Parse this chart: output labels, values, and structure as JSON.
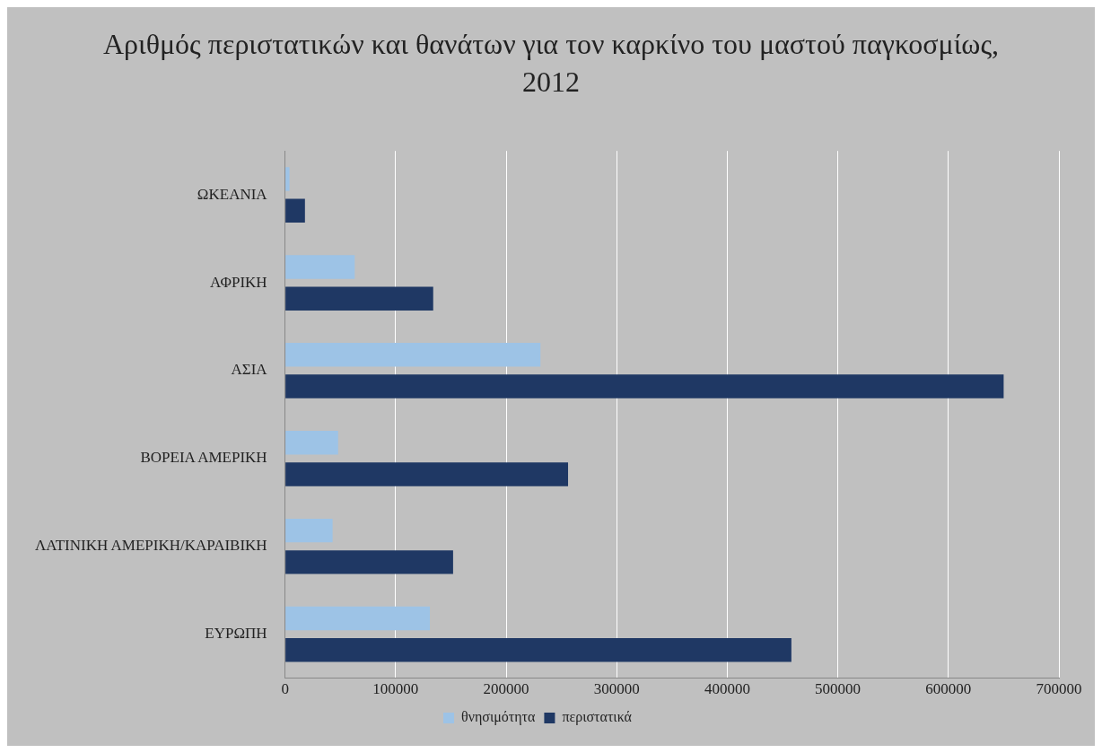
{
  "chart_data": {
    "type": "bar",
    "orientation": "horizontal",
    "title": "Αριθμός περιστατικών και θανάτων για τον καρκίνο του μαστού παγκοσμίως, 2012",
    "categories": [
      "ΩΚΕΑΝΙΑ",
      "ΑΦΡΙΚΗ",
      "ΑΣΙΑ",
      "ΒΟΡΕΙΑ ΑΜΕΡΙΚΗ",
      "ΛΑΤΙΝΙΚΗ ΑΜΕΡΙΚΗ/ΚΑΡΑΙΒΙΚΗ",
      "ΕΥΡΩΠΗ"
    ],
    "series": [
      {
        "name": "θνησιμότητα",
        "color": "#9dc3e6",
        "values": [
          4000,
          63000,
          231000,
          48000,
          43000,
          131000
        ]
      },
      {
        "name": "περιστατικά",
        "color": "#1f3864",
        "values": [
          18000,
          134000,
          650000,
          256000,
          152000,
          458000
        ]
      }
    ],
    "xlim": [
      0,
      700000
    ],
    "xticks": [
      0,
      100000,
      200000,
      300000,
      400000,
      500000,
      600000,
      700000
    ],
    "grid": "x",
    "legend": "bottom"
  }
}
